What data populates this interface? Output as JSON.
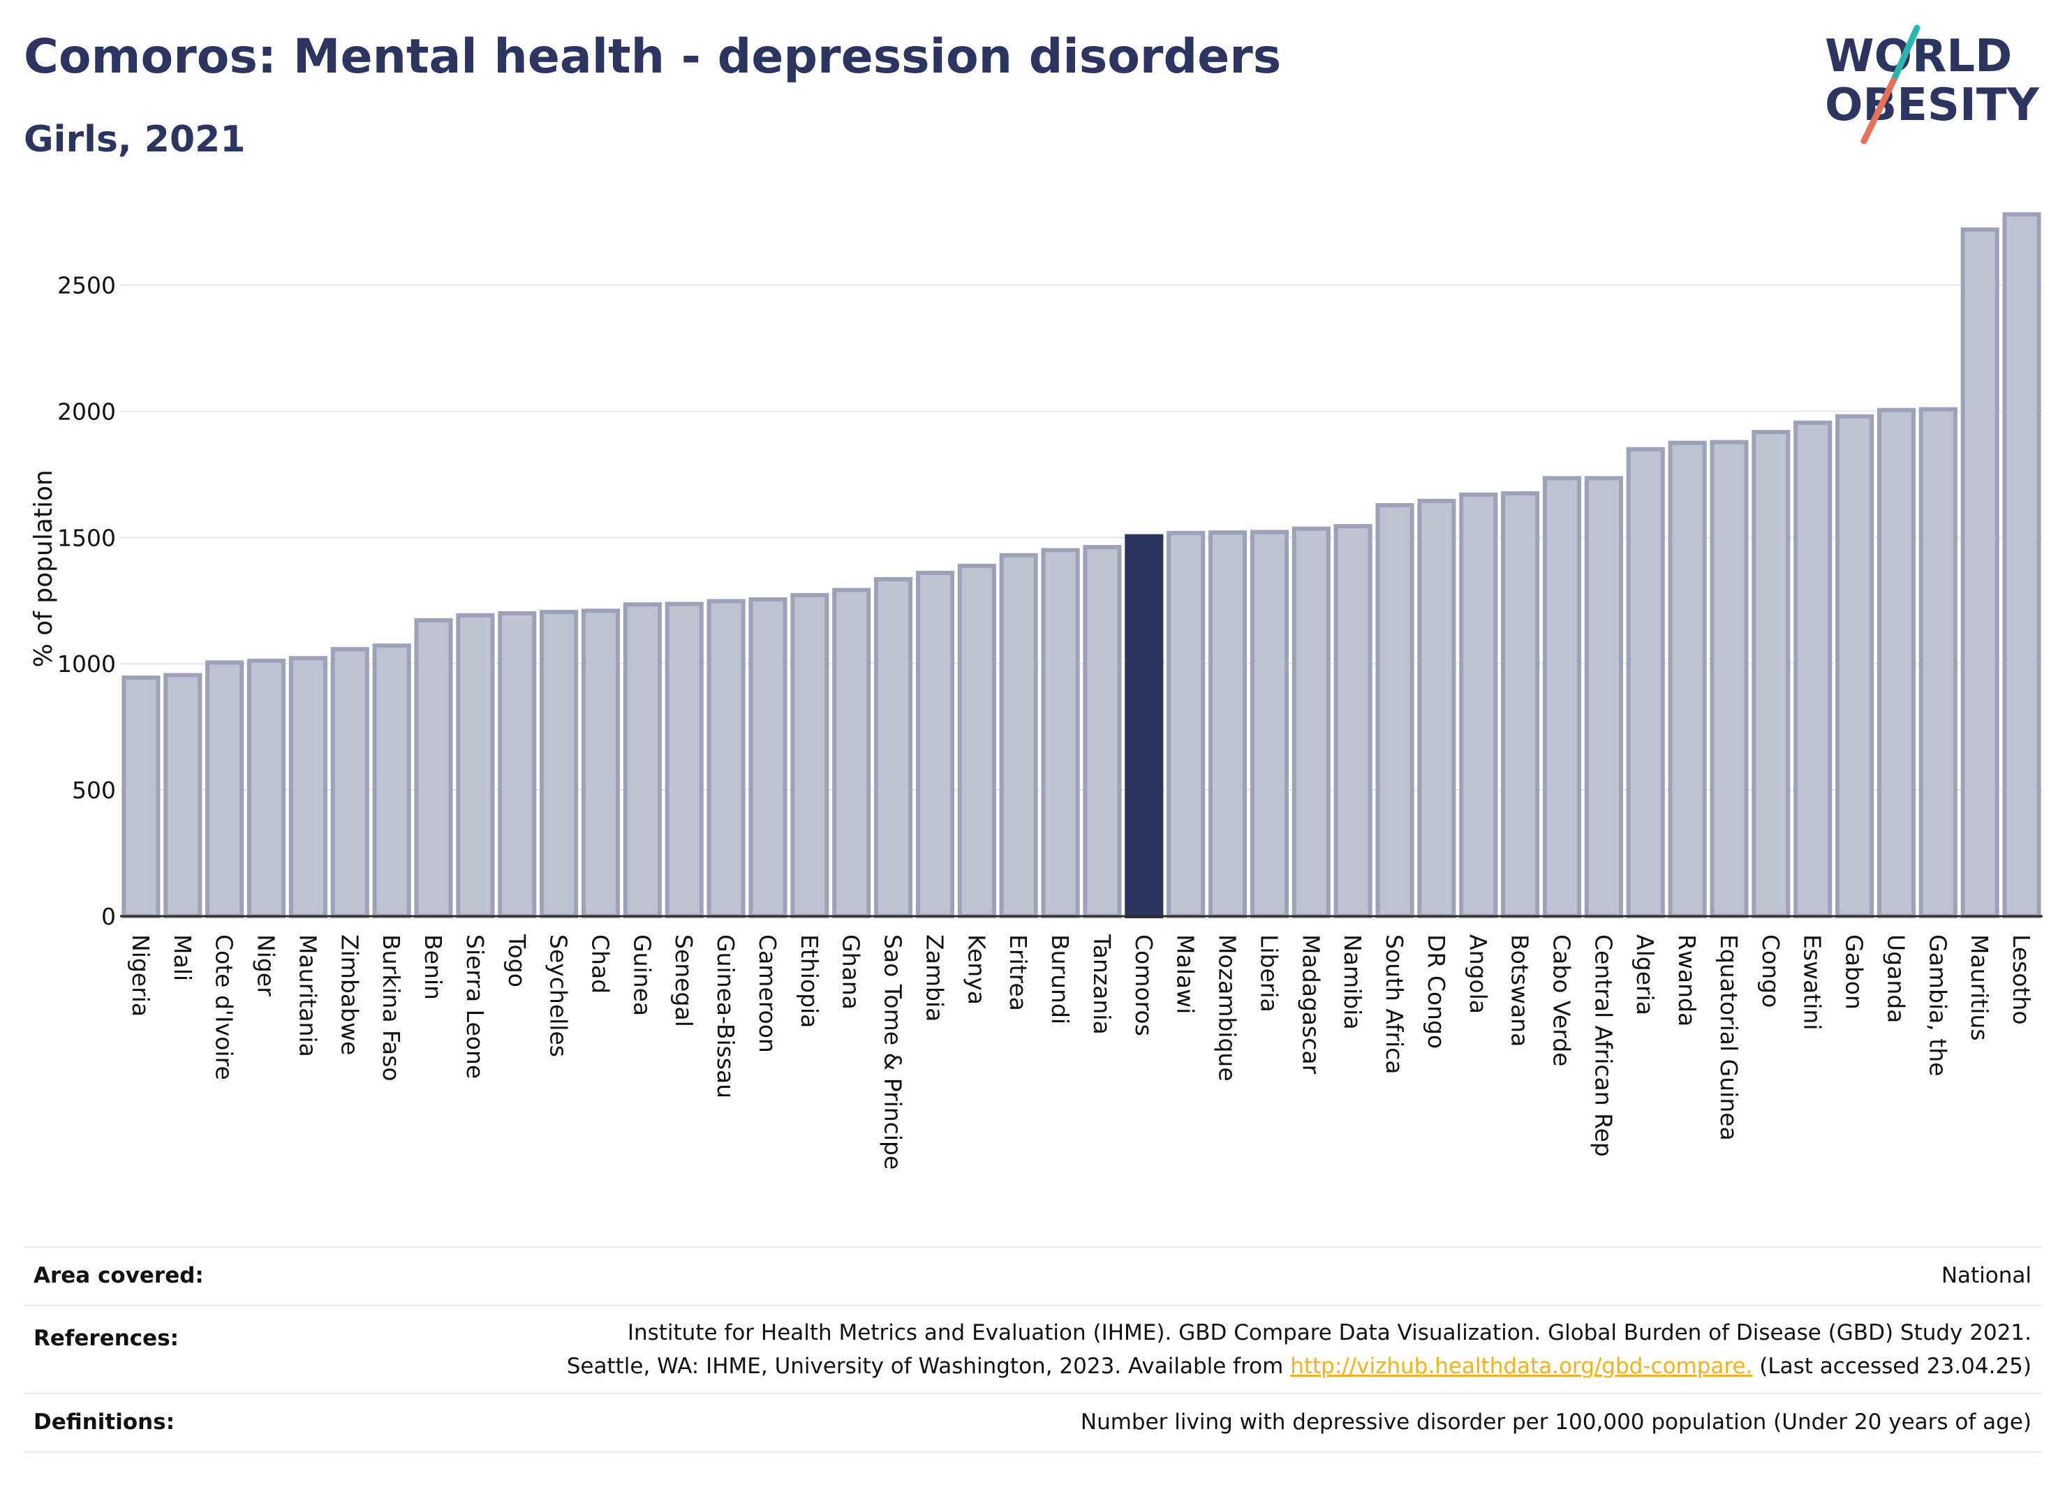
{
  "header": {
    "title": "Comoros: Mental health - depression disorders",
    "subtitle": "Girls, 2021"
  },
  "logo": {
    "line1": "WORLD",
    "line2": "OBESITY",
    "accent_colors": [
      "#2ab5b0",
      "#e8705a"
    ],
    "text_color": "#2b3560"
  },
  "colors": {
    "highlight": "#2b3560",
    "bar": "#bfc3d1",
    "bar_outline": "#9ca2b8"
  },
  "chart_data": {
    "type": "bar",
    "title": "Comoros: Mental health - depression disorders",
    "subtitle": "Girls, 2021",
    "ylabel": "% of population",
    "xlabel": "",
    "ylim": [
      0,
      2800
    ],
    "yticks": [
      0,
      500,
      1000,
      1500,
      2000,
      2500
    ],
    "grid": true,
    "highlight": "Comoros",
    "categories": [
      "Nigeria",
      "Mali",
      "Cote d'Ivoire",
      "Niger",
      "Mauritania",
      "Zimbabwe",
      "Burkina Faso",
      "Benin",
      "Sierra Leone",
      "Togo",
      "Seychelles",
      "Chad",
      "Guinea",
      "Senegal",
      "Guinea-Bissau",
      "Cameroon",
      "Ethiopia",
      "Ghana",
      "Sao Tome & Principe",
      "Zambia",
      "Kenya",
      "Eritrea",
      "Burundi",
      "Tanzania",
      "Comoros",
      "Malawi",
      "Mozambique",
      "Liberia",
      "Madagascar",
      "Namibia",
      "South Africa",
      "DR Congo",
      "Angola",
      "Botswana",
      "Cabo Verde",
      "Central African Rep",
      "Algeria",
      "Rwanda",
      "Equatorial Guinea",
      "Congo",
      "Eswatini",
      "Gabon",
      "Uganda",
      "Gambia, the",
      "Mauritius",
      "Lesotho"
    ],
    "values": [
      945,
      955,
      1005,
      1012,
      1022,
      1058,
      1072,
      1172,
      1192,
      1200,
      1205,
      1210,
      1235,
      1237,
      1248,
      1255,
      1272,
      1292,
      1335,
      1360,
      1388,
      1430,
      1450,
      1462,
      1505,
      1518,
      1520,
      1522,
      1535,
      1545,
      1628,
      1645,
      1670,
      1675,
      1735,
      1735,
      1850,
      1875,
      1878,
      1918,
      1955,
      1980,
      2005,
      2008,
      2720,
      2780
    ]
  },
  "footer": {
    "area_label": "Area covered:",
    "area_value": "National",
    "references_label": "References:",
    "references_line1": "Institute for Health Metrics and Evaluation (IHME). GBD Compare Data Visualization. Global Burden of Disease (GBD) Study 2021.",
    "references_line2_pre": "Seattle, WA: IHME, University of Washington, 2023. Available from ",
    "references_link": "http://vizhub.healthdata.org/gbd-compare.",
    "references_line2_post": " (Last accessed 23.04.25)",
    "definitions_label": "Definitions:",
    "definitions_value": "Number living with depressive disorder per 100,000 population (Under 20 years of age)"
  }
}
